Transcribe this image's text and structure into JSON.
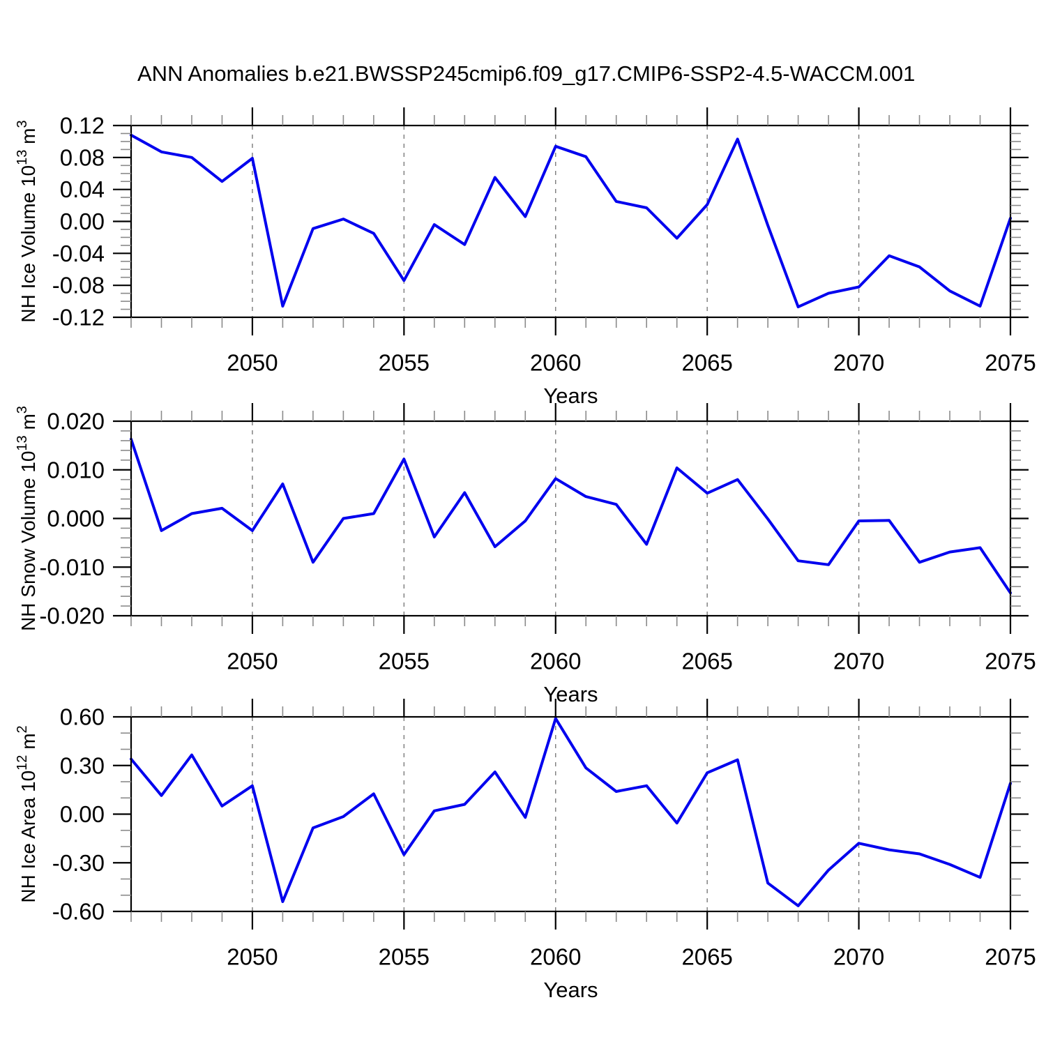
{
  "title": "ANN Anomalies b.e21.BWSSP245cmip6.f09_g17.CMIP6-SSP2-4.5-WACCM.001",
  "line_color": "#0000ee",
  "years": [
    2046,
    2047,
    2048,
    2049,
    2050,
    2051,
    2052,
    2053,
    2054,
    2055,
    2056,
    2057,
    2058,
    2059,
    2060,
    2061,
    2062,
    2063,
    2064,
    2065,
    2066,
    2067,
    2068,
    2069,
    2070,
    2071,
    2072,
    2073,
    2074,
    2075
  ],
  "x_axis": {
    "label": "Years",
    "tick_labels": [
      "2050",
      "2055",
      "2060",
      "2065",
      "2070",
      "2075"
    ],
    "grid_years": [
      2050,
      2055,
      2060,
      2065,
      2070
    ],
    "range": [
      2046,
      2075
    ]
  },
  "chart_data": [
    {
      "type": "line",
      "id": "ice-volume",
      "ylabel_plain": "NH Ice Volume 10^13 m^3",
      "ylabel_segments": [
        {
          "t": "NH Ice Volume 10"
        },
        {
          "t": "13",
          "sup": true
        },
        {
          "t": " m"
        },
        {
          "t": "3",
          "sup": true
        }
      ],
      "xlabel": "Years",
      "ylim": [
        -0.12,
        0.12
      ],
      "y_major": 0.04,
      "y_minor": 0.01,
      "y_tick_labels": [
        "0.12",
        "0.08",
        "0.04",
        "0.00",
        "-0.04",
        "-0.08",
        "-0.12"
      ],
      "grid": "vertical-dashed",
      "x": [
        2046,
        2047,
        2048,
        2049,
        2050,
        2051,
        2052,
        2053,
        2054,
        2055,
        2056,
        2057,
        2058,
        2059,
        2060,
        2061,
        2062,
        2063,
        2064,
        2065,
        2066,
        2067,
        2068,
        2069,
        2070,
        2071,
        2072,
        2073,
        2074,
        2075
      ],
      "values": [
        0.108,
        0.087,
        0.08,
        0.05,
        0.079,
        -0.106,
        -0.009,
        0.003,
        -0.015,
        -0.074,
        -0.004,
        -0.029,
        0.055,
        0.006,
        0.094,
        0.081,
        0.025,
        0.017,
        -0.021,
        0.021,
        0.103,
        -0.005,
        -0.107,
        -0.09,
        -0.082,
        -0.043,
        -0.057,
        -0.087,
        -0.106,
        0.004
      ]
    },
    {
      "type": "line",
      "id": "snow-volume",
      "ylabel_plain": "NH Snow Volume 10^13 m^3",
      "ylabel_segments": [
        {
          "t": "NH Snow Volume 10"
        },
        {
          "t": "13",
          "sup": true
        },
        {
          "t": " m"
        },
        {
          "t": "3",
          "sup": true
        }
      ],
      "xlabel": "Years",
      "ylim": [
        -0.02,
        0.02
      ],
      "y_major": 0.01,
      "y_minor": 0.002,
      "y_tick_labels": [
        "0.020",
        "0.010",
        "0.000",
        "-0.010",
        "-0.020"
      ],
      "grid": "vertical-dashed",
      "x": [
        2046,
        2047,
        2048,
        2049,
        2050,
        2051,
        2052,
        2053,
        2054,
        2055,
        2056,
        2057,
        2058,
        2059,
        2060,
        2061,
        2062,
        2063,
        2064,
        2065,
        2066,
        2067,
        2068,
        2069,
        2070,
        2071,
        2072,
        2073,
        2074,
        2075
      ],
      "values": [
        0.0163,
        -0.0025,
        0.001,
        0.0021,
        -0.0025,
        0.0071,
        -0.009,
        0.0,
        0.001,
        0.0122,
        -0.0038,
        0.0053,
        -0.0058,
        -0.0005,
        0.0082,
        0.0045,
        0.0029,
        -0.0053,
        0.0104,
        0.0052,
        0.008,
        -0.0001,
        -0.0087,
        -0.0095,
        -0.0005,
        -0.0004,
        -0.009,
        -0.0069,
        -0.006,
        -0.0153
      ]
    },
    {
      "type": "line",
      "id": "ice-area",
      "ylabel_plain": "NH Ice Area 10^12 m^2",
      "ylabel_segments": [
        {
          "t": "NH Ice Area 10"
        },
        {
          "t": "12",
          "sup": true
        },
        {
          "t": " m"
        },
        {
          "t": "2",
          "sup": true
        }
      ],
      "xlabel": "Years",
      "ylim": [
        -0.6,
        0.6
      ],
      "y_major": 0.3,
      "y_minor": 0.1,
      "y_tick_labels": [
        "0.60",
        "0.30",
        "0.00",
        "-0.30",
        "-0.60"
      ],
      "grid": "vertical-dashed",
      "x": [
        2046,
        2047,
        2048,
        2049,
        2050,
        2051,
        2052,
        2053,
        2054,
        2055,
        2056,
        2057,
        2058,
        2059,
        2060,
        2061,
        2062,
        2063,
        2064,
        2065,
        2066,
        2067,
        2068,
        2069,
        2070,
        2071,
        2072,
        2073,
        2074,
        2075
      ],
      "values": [
        0.34,
        0.115,
        0.365,
        0.05,
        0.175,
        -0.54,
        -0.085,
        -0.015,
        0.125,
        -0.25,
        0.02,
        0.06,
        0.26,
        -0.02,
        0.59,
        0.285,
        0.14,
        0.175,
        -0.055,
        0.255,
        0.335,
        -0.425,
        -0.565,
        -0.345,
        -0.18,
        -0.22,
        -0.245,
        -0.31,
        -0.39,
        0.19
      ]
    }
  ]
}
